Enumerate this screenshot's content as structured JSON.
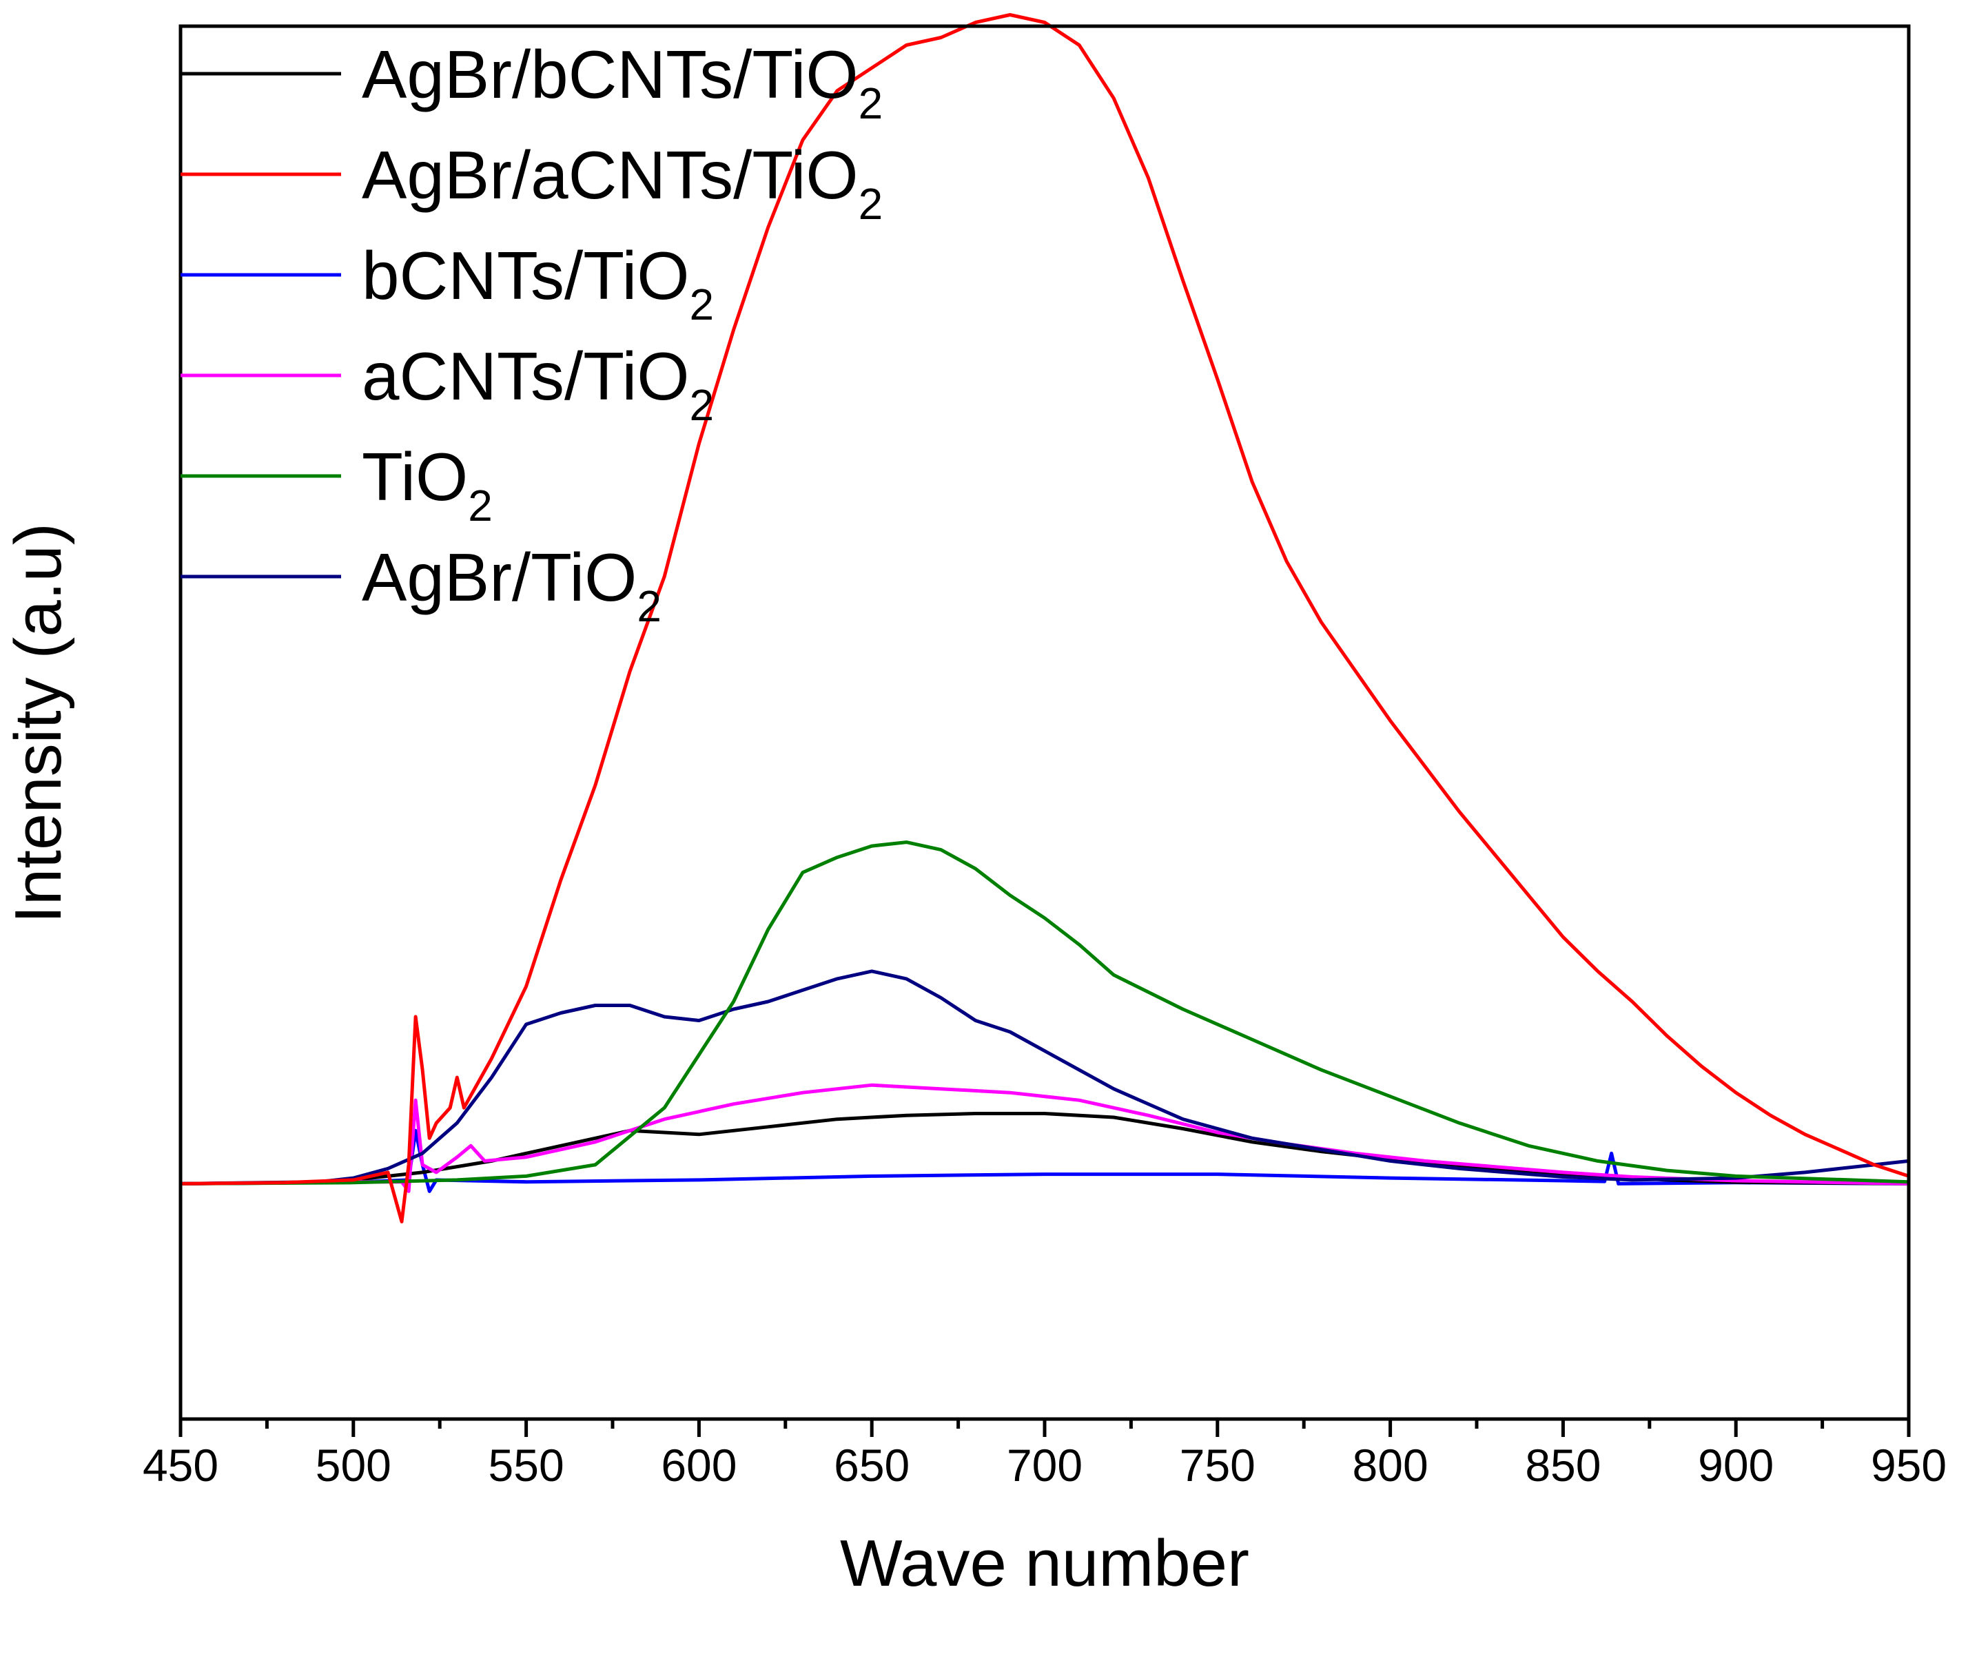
{
  "chart_data": {
    "type": "line",
    "title": "",
    "xlabel": "Wave number",
    "ylabel": "Intensity (a.u)",
    "xlim": [
      450,
      950
    ],
    "ylim": [
      -0.62,
      3.05
    ],
    "xticks": [
      450,
      500,
      550,
      600,
      650,
      700,
      750,
      800,
      850,
      900,
      950
    ],
    "y_tick_labels_shown": false,
    "grid": false,
    "legend_position": "top-left",
    "series": [
      {
        "name": "AgBr/bCNTs/TiO",
        "subscript": "2",
        "color": "#000000",
        "points": [
          [
            450,
            0
          ],
          [
            480,
            0.002
          ],
          [
            500,
            0.01
          ],
          [
            520,
            0.03
          ],
          [
            540,
            0.06
          ],
          [
            560,
            0.1
          ],
          [
            580,
            0.14
          ],
          [
            600,
            0.13
          ],
          [
            620,
            0.15
          ],
          [
            640,
            0.17
          ],
          [
            660,
            0.18
          ],
          [
            680,
            0.185
          ],
          [
            700,
            0.185
          ],
          [
            720,
            0.175
          ],
          [
            740,
            0.145
          ],
          [
            760,
            0.11
          ],
          [
            780,
            0.085
          ],
          [
            800,
            0.065
          ],
          [
            820,
            0.045
          ],
          [
            850,
            0.025
          ],
          [
            880,
            0.01
          ],
          [
            900,
            0.004
          ],
          [
            950,
            0
          ]
        ]
      },
      {
        "name": "AgBr/aCNTs/TiO",
        "subscript": "2",
        "color": "#ff0000",
        "points": [
          [
            450,
            0
          ],
          [
            480,
            0.003
          ],
          [
            500,
            0.01
          ],
          [
            510,
            0.03
          ],
          [
            514,
            -0.1
          ],
          [
            516,
            0.05
          ],
          [
            518,
            0.44
          ],
          [
            520,
            0.3
          ],
          [
            522,
            0.12
          ],
          [
            524,
            0.16
          ],
          [
            528,
            0.2
          ],
          [
            530,
            0.28
          ],
          [
            532,
            0.2
          ],
          [
            540,
            0.33
          ],
          [
            550,
            0.52
          ],
          [
            560,
            0.8
          ],
          [
            570,
            1.05
          ],
          [
            580,
            1.35
          ],
          [
            590,
            1.6
          ],
          [
            600,
            1.95
          ],
          [
            610,
            2.25
          ],
          [
            620,
            2.52
          ],
          [
            630,
            2.75
          ],
          [
            640,
            2.88
          ],
          [
            650,
            2.94
          ],
          [
            660,
            3.0
          ],
          [
            670,
            3.02
          ],
          [
            680,
            3.06
          ],
          [
            690,
            3.08
          ],
          [
            700,
            3.06
          ],
          [
            710,
            3.0
          ],
          [
            720,
            2.86
          ],
          [
            730,
            2.65
          ],
          [
            740,
            2.38
          ],
          [
            750,
            2.12
          ],
          [
            760,
            1.85
          ],
          [
            770,
            1.64
          ],
          [
            780,
            1.48
          ],
          [
            790,
            1.35
          ],
          [
            800,
            1.22
          ],
          [
            810,
            1.1
          ],
          [
            820,
            0.98
          ],
          [
            830,
            0.87
          ],
          [
            840,
            0.76
          ],
          [
            850,
            0.65
          ],
          [
            860,
            0.56
          ],
          [
            870,
            0.48
          ],
          [
            880,
            0.39
          ],
          [
            890,
            0.31
          ],
          [
            900,
            0.24
          ],
          [
            910,
            0.18
          ],
          [
            920,
            0.13
          ],
          [
            930,
            0.09
          ],
          [
            940,
            0.05
          ],
          [
            950,
            0.02
          ]
        ]
      },
      {
        "name": "bCNTs/TiO",
        "subscript": "2",
        "color": "#0000ff",
        "points": [
          [
            450,
            0
          ],
          [
            500,
            0.004
          ],
          [
            516,
            0.01
          ],
          [
            518,
            0.14
          ],
          [
            520,
            0.05
          ],
          [
            522,
            -0.02
          ],
          [
            524,
            0.01
          ],
          [
            550,
            0.005
          ],
          [
            600,
            0.01
          ],
          [
            650,
            0.02
          ],
          [
            700,
            0.025
          ],
          [
            750,
            0.025
          ],
          [
            800,
            0.015
          ],
          [
            850,
            0.008
          ],
          [
            862,
            0.006
          ],
          [
            864,
            0.08
          ],
          [
            866,
            0.0
          ],
          [
            900,
            0.003
          ],
          [
            950,
            0
          ]
        ]
      },
      {
        "name": "aCNTs/TiO",
        "subscript": "2",
        "color": "#ff00ff",
        "points": [
          [
            450,
            0
          ],
          [
            500,
            0.005
          ],
          [
            514,
            0.005
          ],
          [
            516,
            -0.02
          ],
          [
            518,
            0.22
          ],
          [
            520,
            0.05
          ],
          [
            524,
            0.03
          ],
          [
            530,
            0.07
          ],
          [
            534,
            0.1
          ],
          [
            538,
            0.06
          ],
          [
            550,
            0.07
          ],
          [
            570,
            0.11
          ],
          [
            590,
            0.17
          ],
          [
            610,
            0.21
          ],
          [
            630,
            0.24
          ],
          [
            650,
            0.26
          ],
          [
            670,
            0.25
          ],
          [
            690,
            0.24
          ],
          [
            710,
            0.22
          ],
          [
            730,
            0.18
          ],
          [
            750,
            0.135
          ],
          [
            770,
            0.105
          ],
          [
            790,
            0.08
          ],
          [
            810,
            0.06
          ],
          [
            830,
            0.045
          ],
          [
            850,
            0.03
          ],
          [
            870,
            0.018
          ],
          [
            900,
            0.008
          ],
          [
            950,
            0
          ]
        ]
      },
      {
        "name": "TiO",
        "subscript": "2",
        "color": "#008000",
        "points": [
          [
            450,
            0
          ],
          [
            500,
            0.003
          ],
          [
            530,
            0.01
          ],
          [
            550,
            0.02
          ],
          [
            570,
            0.05
          ],
          [
            590,
            0.2
          ],
          [
            610,
            0.48
          ],
          [
            620,
            0.67
          ],
          [
            630,
            0.82
          ],
          [
            640,
            0.86
          ],
          [
            650,
            0.89
          ],
          [
            660,
            0.9
          ],
          [
            670,
            0.88
          ],
          [
            680,
            0.83
          ],
          [
            690,
            0.76
          ],
          [
            700,
            0.7
          ],
          [
            710,
            0.63
          ],
          [
            720,
            0.55
          ],
          [
            740,
            0.46
          ],
          [
            760,
            0.38
          ],
          [
            780,
            0.3
          ],
          [
            800,
            0.23
          ],
          [
            820,
            0.16
          ],
          [
            840,
            0.1
          ],
          [
            860,
            0.06
          ],
          [
            880,
            0.035
          ],
          [
            900,
            0.02
          ],
          [
            950,
            0.005
          ]
        ]
      },
      {
        "name": "AgBr/TiO",
        "subscript": "2",
        "color": "#000080",
        "points": [
          [
            450,
            0
          ],
          [
            490,
            0.005
          ],
          [
            500,
            0.015
          ],
          [
            510,
            0.04
          ],
          [
            520,
            0.08
          ],
          [
            530,
            0.16
          ],
          [
            540,
            0.28
          ],
          [
            550,
            0.42
          ],
          [
            560,
            0.45
          ],
          [
            570,
            0.47
          ],
          [
            580,
            0.47
          ],
          [
            590,
            0.44
          ],
          [
            600,
            0.43
          ],
          [
            610,
            0.46
          ],
          [
            620,
            0.48
          ],
          [
            630,
            0.51
          ],
          [
            640,
            0.54
          ],
          [
            650,
            0.56
          ],
          [
            660,
            0.54
          ],
          [
            670,
            0.49
          ],
          [
            680,
            0.43
          ],
          [
            690,
            0.4
          ],
          [
            700,
            0.35
          ],
          [
            720,
            0.25
          ],
          [
            740,
            0.17
          ],
          [
            760,
            0.12
          ],
          [
            780,
            0.09
          ],
          [
            800,
            0.06
          ],
          [
            820,
            0.04
          ],
          [
            850,
            0.018
          ],
          [
            870,
            0.01
          ],
          [
            900,
            0.015
          ],
          [
            920,
            0.03
          ],
          [
            935,
            0.045
          ],
          [
            950,
            0.06
          ]
        ]
      }
    ]
  }
}
